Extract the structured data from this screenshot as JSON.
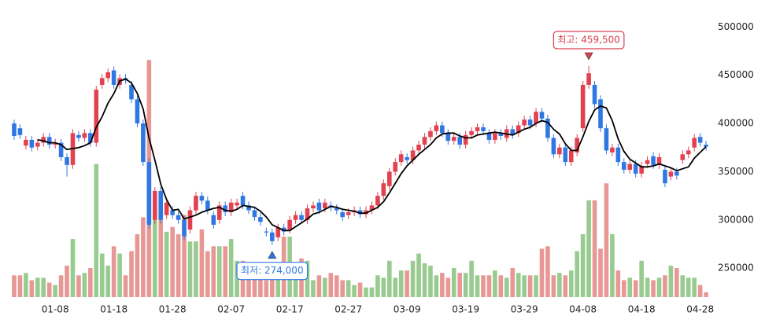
{
  "chart_data": {
    "type": "candlestick",
    "categories": [
      null,
      null,
      null,
      null,
      null,
      null,
      null,
      "01-08",
      null,
      null,
      null,
      null,
      null,
      null,
      null,
      null,
      null,
      "01-18",
      null,
      null,
      null,
      null,
      null,
      null,
      null,
      null,
      null,
      "01-28",
      null,
      null,
      null,
      null,
      null,
      null,
      null,
      null,
      null,
      "02-07",
      null,
      null,
      null,
      null,
      null,
      null,
      null,
      null,
      null,
      "02-17",
      null,
      null,
      null,
      null,
      null,
      null,
      null,
      null,
      null,
      "02-27",
      null,
      null,
      null,
      null,
      null,
      null,
      null,
      null,
      null,
      "03-09",
      null,
      null,
      null,
      null,
      null,
      null,
      null,
      null,
      null,
      "03-19",
      null,
      null,
      null,
      null,
      null,
      null,
      null,
      null,
      null,
      "03-29",
      null,
      null,
      null,
      null,
      null,
      null,
      null,
      null,
      null,
      "04-08",
      null,
      null,
      null,
      null,
      null,
      null,
      null,
      null,
      null,
      "04-18",
      null,
      null,
      null,
      null,
      null,
      null,
      null,
      null,
      null,
      "04-28",
      null
    ],
    "open": [
      400000,
      395000,
      377000,
      383000,
      376000,
      380000,
      386000,
      378000,
      380000,
      365000,
      357000,
      388000,
      385000,
      390000,
      380000,
      440000,
      447000,
      455000,
      440000,
      447000,
      440000,
      425000,
      400000,
      360000,
      300000,
      330000,
      305000,
      310000,
      305000,
      300000,
      290000,
      310000,
      325000,
      320000,
      305000,
      300000,
      315000,
      308000,
      315000,
      325000,
      315000,
      310000,
      303000,
      288000,
      287000,
      282000,
      292000,
      290000,
      300000,
      305000,
      300000,
      312000,
      318000,
      312000,
      315000,
      312000,
      308000,
      305000,
      308000,
      310000,
      306000,
      310000,
      315000,
      325000,
      335000,
      350000,
      360000,
      365000,
      362000,
      372000,
      378000,
      386000,
      392000,
      398000,
      390000,
      382000,
      386000,
      378000,
      388000,
      392000,
      396000,
      390000,
      383000,
      390000,
      385000,
      394000,
      390000,
      398000,
      404000,
      400000,
      412000,
      405000,
      385000,
      368000,
      375000,
      360000,
      370000,
      395000,
      440000,
      440000,
      425000,
      395000,
      370000,
      375000,
      360000,
      352000,
      358000,
      348000,
      358000,
      366000,
      357000,
      352000,
      345000,
      350000,
      362000,
      368000,
      375000,
      386000,
      378000
    ],
    "high": [
      404000,
      399000,
      387000,
      387000,
      384000,
      390000,
      390000,
      384000,
      384000,
      369000,
      394000,
      392000,
      394000,
      394000,
      439000,
      451000,
      457000,
      459000,
      451000,
      451000,
      444000,
      429000,
      404000,
      364000,
      334000,
      334000,
      322000,
      314000,
      309000,
      304000,
      314000,
      329000,
      329000,
      324000,
      309000,
      319000,
      319000,
      322000,
      322000,
      329000,
      319000,
      314000,
      307000,
      292000,
      291000,
      296000,
      296000,
      304000,
      309000,
      309000,
      316000,
      319000,
      322000,
      322000,
      319000,
      316000,
      312000,
      312000,
      314000,
      314000,
      314000,
      319000,
      329000,
      342000,
      354000,
      364000,
      372000,
      369000,
      376000,
      382000,
      390000,
      396000,
      402000,
      402000,
      394000,
      390000,
      390000,
      392000,
      396000,
      400000,
      400000,
      394000,
      394000,
      394000,
      398000,
      398000,
      402000,
      408000,
      408000,
      416000,
      416000,
      409000,
      389000,
      379000,
      379000,
      376000,
      389000,
      444000,
      459500,
      444000,
      429000,
      399000,
      379000,
      379000,
      364000,
      362000,
      362000,
      360000,
      366000,
      370000,
      369000,
      356000,
      354000,
      354000,
      372000,
      376000,
      389000,
      390000,
      382000
    ],
    "low": [
      383000,
      384000,
      373000,
      371000,
      372000,
      376000,
      374000,
      374000,
      361000,
      345000,
      353000,
      381000,
      381000,
      376000,
      376000,
      436000,
      443000,
      436000,
      436000,
      441000,
      421000,
      396000,
      356000,
      291000,
      296000,
      296000,
      301000,
      301000,
      296000,
      279000,
      286000,
      306000,
      316000,
      306000,
      291000,
      296000,
      304000,
      304000,
      311000,
      311000,
      306000,
      299000,
      294000,
      283000,
      274000,
      278000,
      284000,
      286000,
      296000,
      296000,
      296000,
      308000,
      306000,
      308000,
      309000,
      306000,
      299000,
      301000,
      304000,
      302000,
      302000,
      306000,
      311000,
      321000,
      331000,
      346000,
      356000,
      358000,
      358000,
      368000,
      374000,
      382000,
      388000,
      386000,
      378000,
      378000,
      374000,
      374000,
      384000,
      388000,
      388000,
      379000,
      379000,
      383000,
      381000,
      384000,
      386000,
      394000,
      394000,
      396000,
      401000,
      381000,
      364000,
      364000,
      356000,
      356000,
      366000,
      391000,
      436000,
      416000,
      391000,
      368000,
      366000,
      356000,
      348000,
      348000,
      344000,
      344000,
      354000,
      353000,
      353000,
      334000,
      341000,
      342000,
      358000,
      364000,
      371000,
      376000,
      372000
    ],
    "close": [
      387000,
      388000,
      383000,
      375000,
      380000,
      386000,
      378000,
      380000,
      365000,
      357000,
      390000,
      385000,
      390000,
      380000,
      435000,
      447000,
      453000,
      440000,
      447000,
      445000,
      425000,
      400000,
      360000,
      295000,
      330000,
      300000,
      318000,
      305000,
      300000,
      283000,
      310000,
      325000,
      320000,
      310000,
      295000,
      315000,
      308000,
      318000,
      318000,
      315000,
      310000,
      303000,
      298000,
      287000,
      278000,
      292000,
      288000,
      300000,
      305000,
      300000,
      312000,
      315000,
      310000,
      318000,
      313000,
      310000,
      303000,
      308000,
      310000,
      306000,
      310000,
      315000,
      325000,
      338000,
      350000,
      360000,
      368000,
      362000,
      372000,
      378000,
      386000,
      392000,
      398000,
      390000,
      382000,
      386000,
      378000,
      388000,
      392000,
      396000,
      392000,
      383000,
      390000,
      387000,
      394000,
      388000,
      398000,
      404000,
      398000,
      412000,
      405000,
      385000,
      368000,
      375000,
      360000,
      372000,
      385000,
      440000,
      452000,
      420000,
      395000,
      372000,
      375000,
      360000,
      352000,
      358000,
      348000,
      356000,
      362000,
      357000,
      365000,
      338000,
      350000,
      346000,
      368000,
      372000,
      385000,
      380000,
      376000
    ],
    "ma": [
      null,
      null,
      null,
      null,
      383000,
      382000,
      380000,
      380000,
      378000,
      373000,
      374000,
      375000,
      377000,
      380000,
      396000,
      407000,
      421000,
      431000,
      444000,
      446000,
      442000,
      431000,
      415000,
      385000,
      362000,
      337000,
      321000,
      310000,
      311000,
      301000,
      303000,
      305000,
      308000,
      310000,
      312000,
      313000,
      310000,
      309000,
      311000,
      315000,
      314000,
      313000,
      309000,
      303000,
      295000,
      292000,
      289000,
      289000,
      293000,
      297000,
      301000,
      306000,
      308000,
      311000,
      314000,
      313000,
      311000,
      310000,
      309000,
      307000,
      307000,
      310000,
      313000,
      319000,
      328000,
      338000,
      348000,
      356000,
      362000,
      368000,
      373000,
      378000,
      385000,
      389000,
      390000,
      390000,
      387000,
      385000,
      385000,
      388000,
      389000,
      390000,
      391000,
      390000,
      389000,
      388000,
      391000,
      394000,
      396000,
      400000,
      403000,
      401000,
      394000,
      389000,
      379000,
      372000,
      372000,
      386000,
      402000,
      414000,
      418000,
      416000,
      403000,
      384000,
      371000,
      363000,
      359000,
      355000,
      355000,
      356000,
      358000,
      356000,
      354000,
      351000,
      353000,
      355000,
      364000,
      370000,
      376000
    ],
    "volume": [
      9,
      9,
      10,
      7,
      8,
      8,
      6,
      5,
      9,
      13,
      24,
      9,
      10,
      12,
      55,
      18,
      13,
      21,
      18,
      9,
      19,
      26,
      33,
      98,
      43,
      37,
      27,
      29,
      26,
      34,
      23,
      23,
      28,
      19,
      21,
      21,
      21,
      24,
      15,
      15,
      9,
      12,
      8,
      7,
      8,
      11,
      25,
      25,
      13,
      16,
      15,
      7,
      9,
      8,
      10,
      9,
      7,
      7,
      5,
      6,
      4,
      4,
      9,
      8,
      15,
      8,
      11,
      11,
      15,
      18,
      14,
      13,
      9,
      10,
      8,
      12,
      10,
      10,
      15,
      9,
      9,
      9,
      11,
      9,
      8,
      12,
      10,
      9,
      9,
      9,
      20,
      21,
      9,
      10,
      9,
      11,
      19,
      26,
      40,
      40,
      20,
      47,
      26,
      11,
      7,
      8,
      7,
      15,
      8,
      7,
      8,
      9,
      13,
      12,
      9,
      8,
      8,
      5,
      2
    ],
    "volume_lim": [
      0,
      100
    ],
    "ylim": [
      220000,
      510000
    ],
    "yticks": [
      250000,
      300000,
      350000,
      400000,
      450000,
      500000
    ],
    "colors": {
      "up": "#e2414f",
      "down": "#2f78e3",
      "volume_up": "#98cb8f",
      "volume_down": "#e79895",
      "ma": "#000000"
    },
    "annotations": {
      "high": {
        "text": "최고: 459,500",
        "color": "#d9404e"
      },
      "low": {
        "text": "최저: 274,000",
        "color": "#2f78e3"
      }
    }
  }
}
